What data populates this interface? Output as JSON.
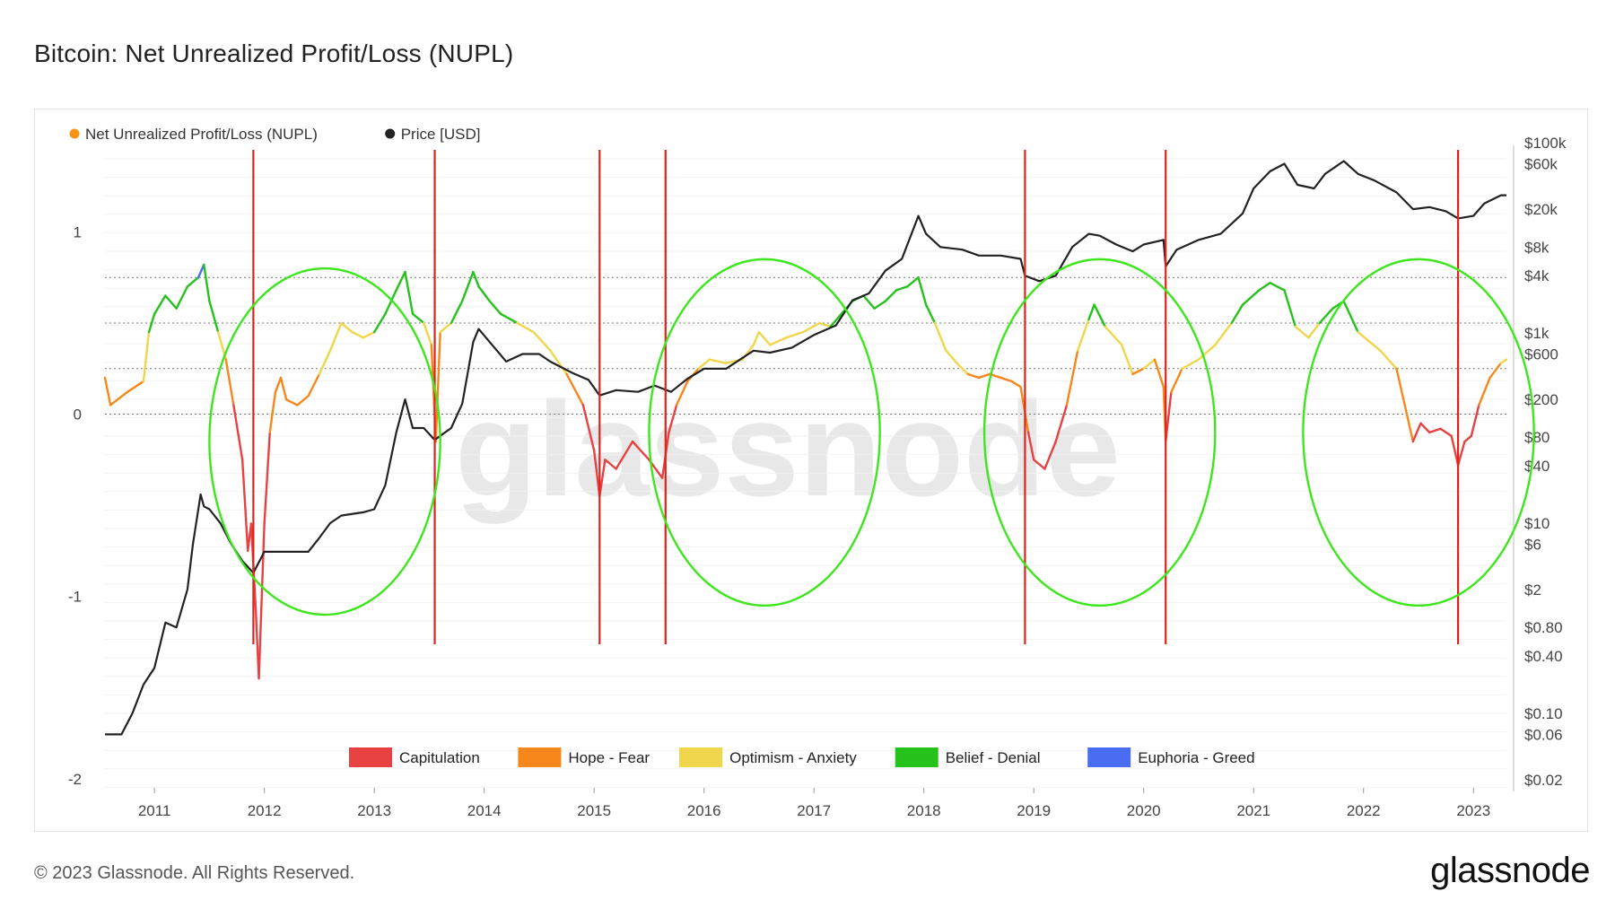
{
  "title": "Bitcoin: Net Unrealized Profit/Loss (NUPL)",
  "footer": {
    "copyright": "© 2023 Glassnode. All Rights Reserved.",
    "logo": "glassnode"
  },
  "chart_data": {
    "type": "line",
    "title": "Bitcoin: Net Unrealized Profit/Loss (NUPL)",
    "watermark": "glassnode",
    "legend_top": [
      {
        "name": "Net Unrealized Profit/Loss (NUPL)",
        "color": "#f7931a"
      },
      {
        "name": "Price [USD]",
        "color": "#222222"
      }
    ],
    "legend_zones": [
      {
        "name": "Capitulation",
        "color": "#e84142"
      },
      {
        "name": "Hope - Fear",
        "color": "#f7861b"
      },
      {
        "name": "Optimism - Anxiety",
        "color": "#f0d64a"
      },
      {
        "name": "Belief - Denial",
        "color": "#26c21c"
      },
      {
        "name": "Euphoria - Greed",
        "color": "#4a6cf0"
      }
    ],
    "x_ticks": [
      "2011",
      "2012",
      "2013",
      "2014",
      "2015",
      "2016",
      "2017",
      "2018",
      "2019",
      "2020",
      "2021",
      "2022",
      "2023"
    ],
    "xlim": [
      2010.55,
      2023.3
    ],
    "left_axis": {
      "ticks": [
        "1",
        "0",
        "-1",
        "-2"
      ],
      "values": [
        1,
        0,
        -1,
        -2
      ],
      "ylim": [
        -2.05,
        1.45
      ]
    },
    "right_axis": {
      "ticks": [
        "$100k",
        "$60k",
        "$20k",
        "$8k",
        "$4k",
        "$1k",
        "$600",
        "$200",
        "$80",
        "$40",
        "$10",
        "$6",
        "$2",
        "$0.80",
        "$0.40",
        "$0.10",
        "$0.06",
        "$0.02"
      ],
      "values": [
        100000,
        60000,
        20000,
        8000,
        4000,
        1000,
        600,
        200,
        80,
        40,
        10,
        6,
        2,
        0.8,
        0.4,
        0.1,
        0.06,
        0.02
      ],
      "scale": "log"
    },
    "zone_thresholds": [
      0,
      0.25,
      0.5,
      0.75
    ],
    "nupl_series": [
      [
        2010.55,
        0.2
      ],
      [
        2010.6,
        0.05
      ],
      [
        2010.75,
        0.12
      ],
      [
        2010.9,
        0.18
      ],
      [
        2010.95,
        0.45
      ],
      [
        2011.0,
        0.55
      ],
      [
        2011.1,
        0.65
      ],
      [
        2011.2,
        0.58
      ],
      [
        2011.3,
        0.7
      ],
      [
        2011.4,
        0.75
      ],
      [
        2011.45,
        0.82
      ],
      [
        2011.5,
        0.62
      ],
      [
        2011.58,
        0.45
      ],
      [
        2011.65,
        0.3
      ],
      [
        2011.72,
        0.05
      ],
      [
        2011.8,
        -0.25
      ],
      [
        2011.85,
        -0.75
      ],
      [
        2011.88,
        -0.6
      ],
      [
        2011.92,
        -1.05
      ],
      [
        2011.95,
        -1.45
      ],
      [
        2012.0,
        -0.6
      ],
      [
        2012.05,
        -0.1
      ],
      [
        2012.1,
        0.12
      ],
      [
        2012.15,
        0.2
      ],
      [
        2012.2,
        0.08
      ],
      [
        2012.3,
        0.05
      ],
      [
        2012.4,
        0.1
      ],
      [
        2012.5,
        0.22
      ],
      [
        2012.6,
        0.35
      ],
      [
        2012.7,
        0.5
      ],
      [
        2012.8,
        0.45
      ],
      [
        2012.9,
        0.42
      ],
      [
        2013.0,
        0.45
      ],
      [
        2013.1,
        0.55
      ],
      [
        2013.2,
        0.68
      ],
      [
        2013.28,
        0.78
      ],
      [
        2013.35,
        0.55
      ],
      [
        2013.45,
        0.5
      ],
      [
        2013.52,
        0.38
      ],
      [
        2013.56,
        -0.15
      ],
      [
        2013.6,
        0.45
      ],
      [
        2013.7,
        0.5
      ],
      [
        2013.8,
        0.62
      ],
      [
        2013.9,
        0.78
      ],
      [
        2013.95,
        0.7
      ],
      [
        2014.05,
        0.62
      ],
      [
        2014.15,
        0.55
      ],
      [
        2014.3,
        0.5
      ],
      [
        2014.45,
        0.45
      ],
      [
        2014.6,
        0.35
      ],
      [
        2014.75,
        0.22
      ],
      [
        2014.9,
        0.05
      ],
      [
        2015.0,
        -0.2
      ],
      [
        2015.05,
        -0.45
      ],
      [
        2015.1,
        -0.25
      ],
      [
        2015.2,
        -0.3
      ],
      [
        2015.35,
        -0.15
      ],
      [
        2015.5,
        -0.25
      ],
      [
        2015.62,
        -0.35
      ],
      [
        2015.68,
        -0.1
      ],
      [
        2015.75,
        0.05
      ],
      [
        2015.85,
        0.18
      ],
      [
        2015.95,
        0.25
      ],
      [
        2016.05,
        0.3
      ],
      [
        2016.2,
        0.28
      ],
      [
        2016.35,
        0.3
      ],
      [
        2016.45,
        0.38
      ],
      [
        2016.5,
        0.45
      ],
      [
        2016.6,
        0.38
      ],
      [
        2016.75,
        0.42
      ],
      [
        2016.9,
        0.45
      ],
      [
        2017.05,
        0.5
      ],
      [
        2017.15,
        0.48
      ],
      [
        2017.25,
        0.55
      ],
      [
        2017.35,
        0.62
      ],
      [
        2017.45,
        0.65
      ],
      [
        2017.55,
        0.58
      ],
      [
        2017.65,
        0.62
      ],
      [
        2017.75,
        0.68
      ],
      [
        2017.85,
        0.7
      ],
      [
        2017.95,
        0.75
      ],
      [
        2018.02,
        0.6
      ],
      [
        2018.1,
        0.5
      ],
      [
        2018.2,
        0.35
      ],
      [
        2018.3,
        0.28
      ],
      [
        2018.4,
        0.22
      ],
      [
        2018.5,
        0.2
      ],
      [
        2018.6,
        0.22
      ],
      [
        2018.7,
        0.2
      ],
      [
        2018.8,
        0.18
      ],
      [
        2018.88,
        0.15
      ],
      [
        2018.95,
        -0.1
      ],
      [
        2019.0,
        -0.25
      ],
      [
        2019.1,
        -0.3
      ],
      [
        2019.2,
        -0.15
      ],
      [
        2019.3,
        0.05
      ],
      [
        2019.4,
        0.35
      ],
      [
        2019.5,
        0.52
      ],
      [
        2019.55,
        0.6
      ],
      [
        2019.65,
        0.48
      ],
      [
        2019.8,
        0.38
      ],
      [
        2019.9,
        0.22
      ],
      [
        2020.0,
        0.25
      ],
      [
        2020.1,
        0.3
      ],
      [
        2020.18,
        0.15
      ],
      [
        2020.2,
        -0.15
      ],
      [
        2020.25,
        0.12
      ],
      [
        2020.35,
        0.25
      ],
      [
        2020.5,
        0.3
      ],
      [
        2020.65,
        0.38
      ],
      [
        2020.8,
        0.5
      ],
      [
        2020.9,
        0.6
      ],
      [
        2021.05,
        0.68
      ],
      [
        2021.15,
        0.72
      ],
      [
        2021.28,
        0.68
      ],
      [
        2021.38,
        0.48
      ],
      [
        2021.5,
        0.42
      ],
      [
        2021.6,
        0.5
      ],
      [
        2021.72,
        0.58
      ],
      [
        2021.82,
        0.62
      ],
      [
        2021.95,
        0.45
      ],
      [
        2022.05,
        0.4
      ],
      [
        2022.15,
        0.35
      ],
      [
        2022.3,
        0.25
      ],
      [
        2022.45,
        -0.15
      ],
      [
        2022.52,
        -0.05
      ],
      [
        2022.6,
        -0.1
      ],
      [
        2022.7,
        -0.08
      ],
      [
        2022.8,
        -0.12
      ],
      [
        2022.86,
        -0.28
      ],
      [
        2022.92,
        -0.15
      ],
      [
        2022.98,
        -0.12
      ],
      [
        2023.05,
        0.05
      ],
      [
        2023.15,
        0.2
      ],
      [
        2023.25,
        0.28
      ],
      [
        2023.3,
        0.3
      ]
    ],
    "price_series": [
      [
        2010.55,
        0.06
      ],
      [
        2010.7,
        0.06
      ],
      [
        2010.8,
        0.1
      ],
      [
        2010.9,
        0.2
      ],
      [
        2011.0,
        0.3
      ],
      [
        2011.1,
        0.9
      ],
      [
        2011.2,
        0.8
      ],
      [
        2011.3,
        2
      ],
      [
        2011.35,
        6
      ],
      [
        2011.42,
        20
      ],
      [
        2011.45,
        15
      ],
      [
        2011.5,
        14
      ],
      [
        2011.6,
        10
      ],
      [
        2011.7,
        6
      ],
      [
        2011.8,
        4
      ],
      [
        2011.9,
        3
      ],
      [
        2012.0,
        5
      ],
      [
        2012.2,
        5
      ],
      [
        2012.4,
        5
      ],
      [
        2012.5,
        7
      ],
      [
        2012.6,
        10
      ],
      [
        2012.7,
        12
      ],
      [
        2012.9,
        13
      ],
      [
        2013.0,
        14
      ],
      [
        2013.1,
        25
      ],
      [
        2013.2,
        90
      ],
      [
        2013.28,
        200
      ],
      [
        2013.35,
        100
      ],
      [
        2013.45,
        100
      ],
      [
        2013.55,
        75
      ],
      [
        2013.7,
        100
      ],
      [
        2013.8,
        180
      ],
      [
        2013.9,
        800
      ],
      [
        2013.95,
        1100
      ],
      [
        2014.05,
        800
      ],
      [
        2014.2,
        500
      ],
      [
        2014.35,
        600
      ],
      [
        2014.5,
        600
      ],
      [
        2014.6,
        500
      ],
      [
        2014.8,
        380
      ],
      [
        2014.95,
        320
      ],
      [
        2015.05,
        220
      ],
      [
        2015.2,
        250
      ],
      [
        2015.4,
        240
      ],
      [
        2015.55,
        280
      ],
      [
        2015.7,
        240
      ],
      [
        2015.85,
        330
      ],
      [
        2016.0,
        420
      ],
      [
        2016.2,
        420
      ],
      [
        2016.45,
        650
      ],
      [
        2016.6,
        620
      ],
      [
        2016.8,
        700
      ],
      [
        2017.0,
        950
      ],
      [
        2017.2,
        1200
      ],
      [
        2017.35,
        2200
      ],
      [
        2017.5,
        2600
      ],
      [
        2017.65,
        4500
      ],
      [
        2017.8,
        6000
      ],
      [
        2017.95,
        17000
      ],
      [
        2018.02,
        11000
      ],
      [
        2018.15,
        8000
      ],
      [
        2018.35,
        7500
      ],
      [
        2018.5,
        6500
      ],
      [
        2018.7,
        6500
      ],
      [
        2018.88,
        6000
      ],
      [
        2018.92,
        4000
      ],
      [
        2019.05,
        3500
      ],
      [
        2019.2,
        4000
      ],
      [
        2019.35,
        8000
      ],
      [
        2019.5,
        11000
      ],
      [
        2019.6,
        10500
      ],
      [
        2019.75,
        8500
      ],
      [
        2019.9,
        7200
      ],
      [
        2020.0,
        8500
      ],
      [
        2020.18,
        9500
      ],
      [
        2020.2,
        5000
      ],
      [
        2020.3,
        7500
      ],
      [
        2020.5,
        9500
      ],
      [
        2020.7,
        11000
      ],
      [
        2020.9,
        18000
      ],
      [
        2021.0,
        33000
      ],
      [
        2021.15,
        50000
      ],
      [
        2021.28,
        60000
      ],
      [
        2021.4,
        36000
      ],
      [
        2021.55,
        33000
      ],
      [
        2021.65,
        47000
      ],
      [
        2021.82,
        64000
      ],
      [
        2021.95,
        47000
      ],
      [
        2022.1,
        40000
      ],
      [
        2022.3,
        30000
      ],
      [
        2022.45,
        20000
      ],
      [
        2022.6,
        21000
      ],
      [
        2022.75,
        19000
      ],
      [
        2022.86,
        16000
      ],
      [
        2023.0,
        17000
      ],
      [
        2023.1,
        23000
      ],
      [
        2023.25,
        28000
      ],
      [
        2023.3,
        28000
      ]
    ],
    "capitulation_markers": [
      2011.9,
      2013.55,
      2015.05,
      2015.65,
      2018.92,
      2020.2,
      2022.86
    ],
    "highlight_circles": [
      {
        "center_year": 2012.55,
        "center_nupl": -0.15,
        "year_radius": 1.05,
        "nupl_radius": 0.95
      },
      {
        "center_year": 2016.55,
        "center_nupl": -0.1,
        "year_radius": 1.05,
        "nupl_radius": 0.95
      },
      {
        "center_year": 2019.6,
        "center_nupl": -0.1,
        "year_radius": 1.05,
        "nupl_radius": 0.95
      },
      {
        "center_year": 2022.5,
        "center_nupl": -0.1,
        "year_radius": 1.05,
        "nupl_radius": 0.95
      }
    ]
  }
}
